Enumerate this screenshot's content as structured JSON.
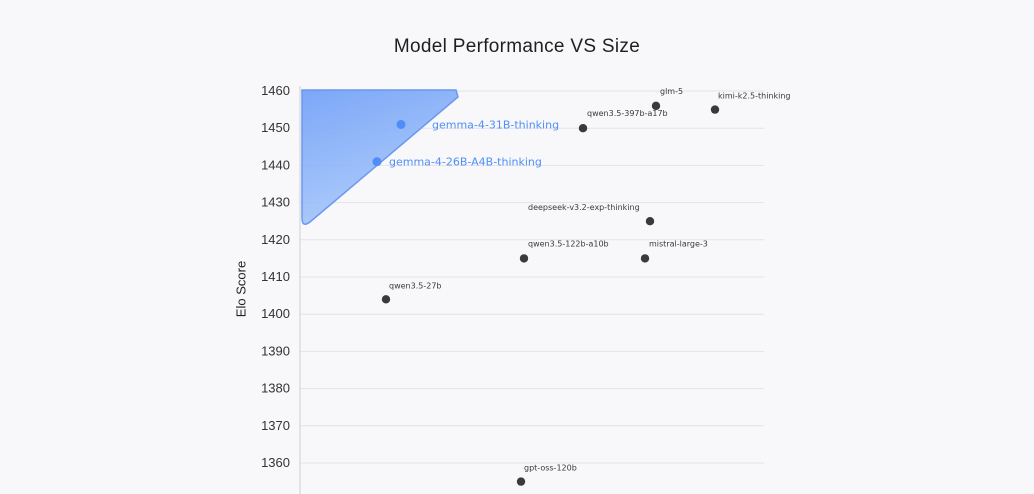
{
  "chart_data": {
    "type": "scatter",
    "title": "Model Performance VS Size",
    "xlabel": "",
    "ylabel": "Elo Score",
    "ylim": [
      1355,
      1460
    ],
    "yticks": [
      1360,
      1370,
      1380,
      1390,
      1400,
      1410,
      1420,
      1430,
      1440,
      1450,
      1460
    ],
    "grid": "horizontal",
    "highlight_color": "#4f8ef7",
    "point_color": "#3a3a3a",
    "points": [
      {
        "label": "gemma-4-31B-thinking",
        "y": 1451,
        "highlight": true
      },
      {
        "label": "gemma-4-26B-A4B-thinking",
        "y": 1441,
        "highlight": true
      },
      {
        "label": "glm-5",
        "y": 1456
      },
      {
        "label": "kimi-k2.5-thinking",
        "y": 1455
      },
      {
        "label": "qwen3.5-397b-a17b",
        "y": 1450
      },
      {
        "label": "deepseek-v3.2-exp-thinking",
        "y": 1425
      },
      {
        "label": "qwen3.5-122b-a10b",
        "y": 1415
      },
      {
        "label": "mistral-large-3",
        "y": 1415
      },
      {
        "label": "qwen3.5-27b",
        "y": 1404
      },
      {
        "label": "gpt-oss-120b",
        "y": 1355
      }
    ]
  }
}
